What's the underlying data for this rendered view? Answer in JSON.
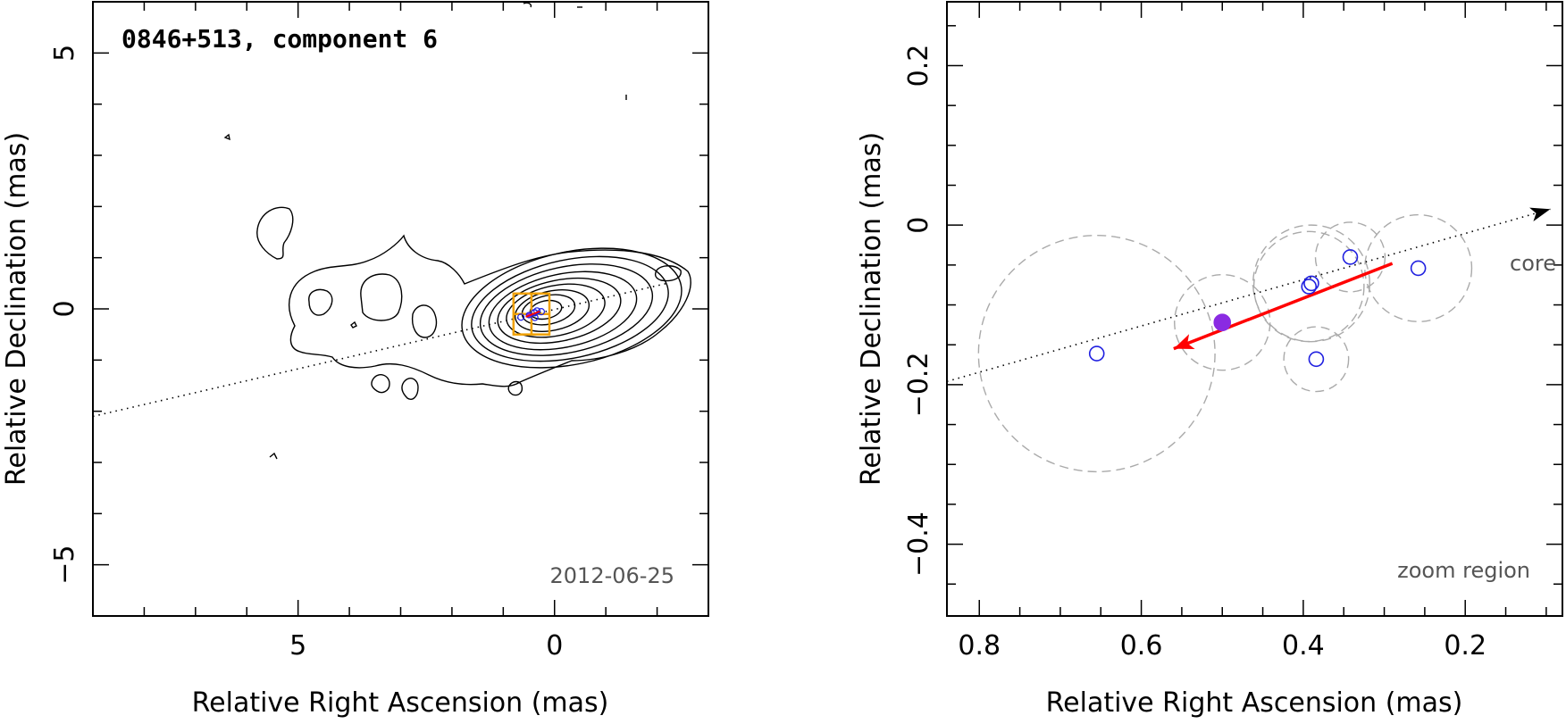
{
  "chart_data": [
    {
      "type": "scatter",
      "title": "0846+513, component 6",
      "date_label": "2012-06-25",
      "xlabel": "Relative Right Ascension (mas)",
      "ylabel": "Relative Declination (mas)",
      "xlim": [
        9,
        -3
      ],
      "ylim": [
        -6,
        6
      ],
      "xticks": [
        5,
        0
      ],
      "yticks": [
        5,
        0,
        -5
      ],
      "xtick_labels": [
        "5",
        "0"
      ],
      "ytick_labels": [
        "5",
        "0",
        "−5"
      ],
      "map_peak": [
        0,
        0
      ],
      "zoom_box": {
        "ra": [
          0.8,
          0.1
        ],
        "dec": [
          -0.5,
          0.3
        ]
      },
      "jet_axis": {
        "ra": [
          9,
          -2.2
        ],
        "dec": [
          -2.1,
          0.5
        ]
      }
    },
    {
      "type": "scatter",
      "xlabel": "Relative Right Ascension (mas)",
      "ylabel": "Relative Declination (mas)",
      "xlim": [
        0.84,
        0.08
      ],
      "ylim": [
        -0.49,
        0.28
      ],
      "xticks": [
        0.8,
        0.6,
        0.4,
        0.2
      ],
      "yticks": [
        0.2,
        0,
        -0.2,
        -0.4
      ],
      "xtick_labels": [
        "0.8",
        "0.6",
        "0.4",
        "0.2"
      ],
      "ytick_labels": [
        "0.2",
        "0",
        "−0.2",
        "−0.4"
      ],
      "corner_label": "zoom region",
      "core_label": "core",
      "components": [
        {
          "ra": 0.655,
          "dec": -0.161,
          "size": 0.146,
          "highlight": false
        },
        {
          "ra": 0.5,
          "dec": -0.122,
          "size": 0.059,
          "highlight": true
        },
        {
          "ra": 0.393,
          "dec": -0.077,
          "size": 0.068,
          "highlight": false
        },
        {
          "ra": 0.39,
          "dec": -0.073,
          "size": 0.072,
          "highlight": false
        },
        {
          "ra": 0.384,
          "dec": -0.168,
          "size": 0.04,
          "highlight": false
        },
        {
          "ra": 0.342,
          "dec": -0.04,
          "size": 0.043,
          "highlight": false
        },
        {
          "ra": 0.258,
          "dec": -0.054,
          "size": 0.066,
          "highlight": false
        }
      ],
      "velocity_vector": {
        "from": [
          0.29,
          -0.048
        ],
        "to": [
          0.56,
          -0.155
        ]
      },
      "jet_axis": {
        "from": [
          0.84,
          -0.196
        ],
        "to": [
          0.095,
          0.02
        ]
      },
      "colors": {
        "component": "#2020e0",
        "highlight": "#8a2be2",
        "vector": "#ff0000",
        "axis": "#000000",
        "ghost": "#aaaaaa"
      }
    }
  ]
}
